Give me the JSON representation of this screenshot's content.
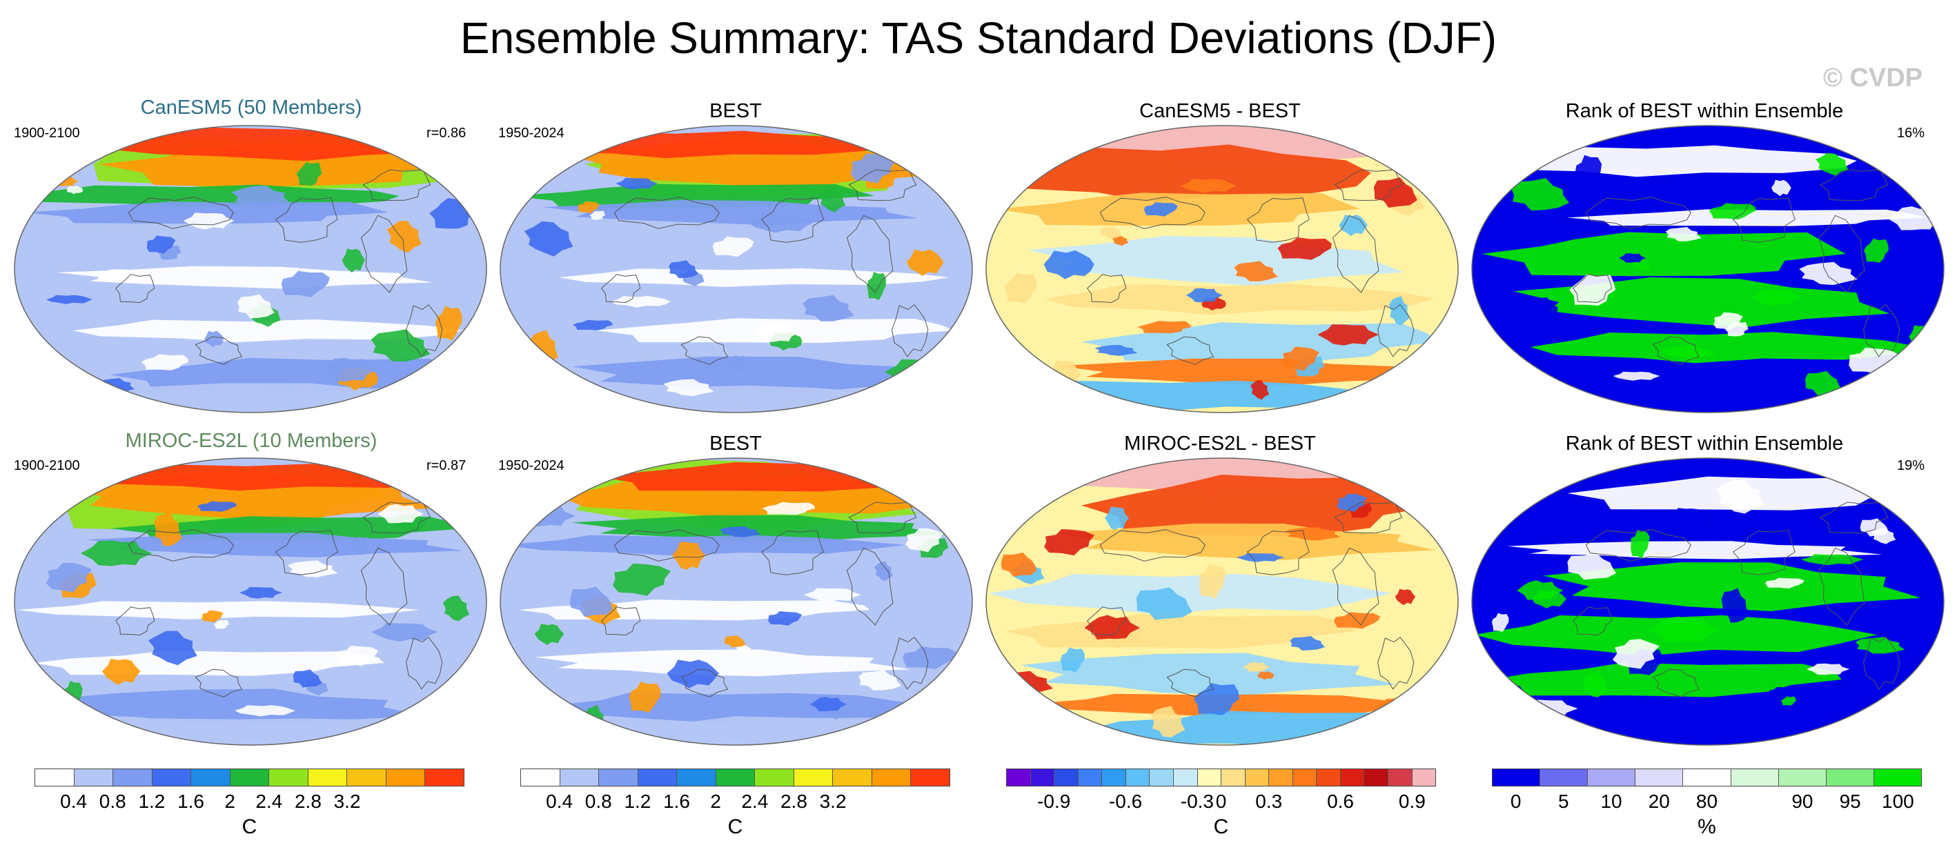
{
  "title": "Ensemble Summary: TAS Standard Deviations (DJF)",
  "watermark": "© CVDP",
  "rows": [
    {
      "panels": [
        {
          "title": "CanESM5 (50 Members)",
          "title_color": "#2b6f86",
          "left_info": "1900-2100",
          "right_info": "r=0.86",
          "kind": "sd"
        },
        {
          "title": "BEST",
          "title_color": "#000000",
          "left_info": "1950-2024",
          "right_info": "",
          "kind": "sd"
        },
        {
          "title": "CanESM5 - BEST",
          "title_color": "#000000",
          "left_info": "",
          "right_info": "",
          "kind": "diff"
        },
        {
          "title": "Rank of BEST within Ensemble",
          "title_color": "#000000",
          "left_info": "",
          "right_info": "16%",
          "kind": "rank"
        }
      ]
    },
    {
      "panels": [
        {
          "title": "MIROC-ES2L (10 Members)",
          "title_color": "#5e8a5e",
          "left_info": "1900-2100",
          "right_info": "r=0.87",
          "kind": "sd"
        },
        {
          "title": "BEST",
          "title_color": "#000000",
          "left_info": "1950-2024",
          "right_info": "",
          "kind": "sd"
        },
        {
          "title": "MIROC-ES2L - BEST",
          "title_color": "#000000",
          "left_info": "",
          "right_info": "",
          "kind": "diff"
        },
        {
          "title": "Rank of BEST within Ensemble",
          "title_color": "#000000",
          "left_info": "",
          "right_info": "19%",
          "kind": "rank"
        }
      ]
    }
  ],
  "legends": [
    {
      "name": "sd",
      "colors": [
        "#ffffff",
        "#b4c6f5",
        "#7f9df0",
        "#3f6cf0",
        "#1e8ce6",
        "#1fb83a",
        "#8fe31e",
        "#f6f21b",
        "#f7c212",
        "#ff9a07",
        "#ff3a0e"
      ],
      "labels": [
        "0.4",
        "0.8",
        "1.2",
        "1.6",
        "2",
        "2.4",
        "2.8",
        "3.2"
      ],
      "unit": "C"
    },
    {
      "name": "sd",
      "colors": [
        "#ffffff",
        "#b4c6f5",
        "#7f9df0",
        "#3f6cf0",
        "#1e8ce6",
        "#1fb83a",
        "#8fe31e",
        "#f6f21b",
        "#f7c212",
        "#ff9a07",
        "#ff3a0e"
      ],
      "labels": [
        "0.4",
        "0.8",
        "1.2",
        "1.6",
        "2",
        "2.4",
        "2.8",
        "3.2"
      ],
      "unit": "C"
    },
    {
      "name": "diff",
      "colors": [
        "#6a00d6",
        "#3c14e0",
        "#2a4de8",
        "#3d7ef2",
        "#2f9cf3",
        "#5ec0f6",
        "#9cd8f6",
        "#c9e9f7",
        "#fffbb8",
        "#ffe08a",
        "#ffc44e",
        "#ff9f2a",
        "#ff7a1a",
        "#f24b14",
        "#dd1e12",
        "#bb0d12",
        "#d63d4a",
        "#f4b6bb"
      ],
      "labels": [
        "-0.9",
        "-0.6",
        "-0.3",
        "0",
        "0.3",
        "0.6",
        "0.9"
      ],
      "unit": "C"
    },
    {
      "name": "rank",
      "colors": [
        "#0000e6",
        "#6b6bf0",
        "#a9a9f5",
        "#dcdcfa",
        "#ffffff",
        "#d9f8d9",
        "#b3f3b3",
        "#7cec7c",
        "#00e600"
      ],
      "labels": [
        "0",
        "5",
        "10",
        "20",
        "80",
        "90",
        "95",
        "100"
      ],
      "unit": "%"
    }
  ]
}
